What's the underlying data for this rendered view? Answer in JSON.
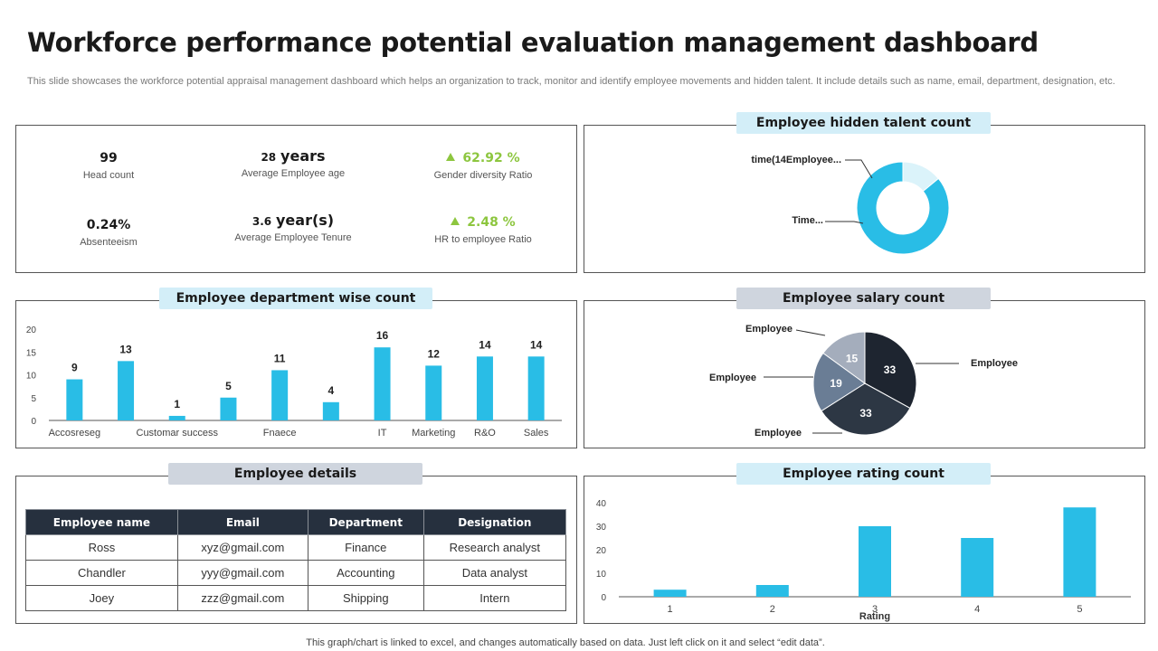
{
  "header": {
    "title": "Workforce performance potential evaluation management dashboard",
    "subtitle": "This slide showcases the workforce potential appraisal management dashboard which helps an organization to track, monitor and identify employee movements and hidden talent. It include details such as name, email, department, designation, etc."
  },
  "kpis": {
    "head_count": {
      "value": "99",
      "label": "Head count"
    },
    "avg_age": {
      "value": "28",
      "unit": "years",
      "label": "Average Employee age"
    },
    "gender_ratio": {
      "value": "62.92 %",
      "label": "Gender diversity Ratio"
    },
    "absenteeism": {
      "value": "0.24%",
      "label": "Absenteeism"
    },
    "avg_tenure": {
      "value": "3.6",
      "unit": "year(s)",
      "label": "Average Employee Tenure"
    },
    "hr_ratio": {
      "value": "2.48 %",
      "label": "HR to employee Ratio"
    }
  },
  "panels": {
    "hidden_talent": "Employee hidden talent count",
    "department": "Employee department wise count",
    "salary": "Employee salary count",
    "details": "Employee details",
    "rating": "Employee rating count"
  },
  "colors": {
    "accent": "#29bde6",
    "light_accent": "#dbf3fa",
    "green": "#8dc63f",
    "dark": "#26303e"
  },
  "table": {
    "headers": [
      "Employee name",
      "Email",
      "Department",
      "Designation"
    ],
    "rows": [
      [
        "Ross",
        "xyz@gmail.com",
        "Finance",
        "Research analyst"
      ],
      [
        "Chandler",
        "yyy@gmail.com",
        "Accounting",
        "Data analyst"
      ],
      [
        "Joey",
        "zzz@gmail.com",
        "Shipping",
        "Intern"
      ]
    ]
  },
  "footer": "This graph/chart is linked to excel, and changes automatically based on data. Just left click on it and select “edit data”.",
  "chart_data": [
    {
      "id": "hidden_talent",
      "type": "pie",
      "title": "Employee hidden talent count",
      "labels": [
        "time(14Employee...",
        "Time..."
      ],
      "values": [
        14,
        86
      ],
      "colors": [
        "#dbf3fa",
        "#29bde6"
      ]
    },
    {
      "id": "department",
      "type": "bar",
      "title": "Employee department wise count",
      "categories": [
        "Accosreseg",
        "",
        "Customar success",
        "",
        "Fnaece",
        "",
        "IT",
        "Marketing",
        "R&O",
        "Sales"
      ],
      "values": [
        9,
        13,
        1,
        5,
        11,
        4,
        16,
        12,
        14,
        14
      ],
      "ylim": [
        0,
        20
      ],
      "yticks": [
        0,
        5,
        10,
        15,
        20
      ]
    },
    {
      "id": "salary",
      "type": "pie",
      "title": "Employee salary count",
      "labels": [
        "Employee",
        "Employee",
        "Employee",
        "Employee"
      ],
      "values": [
        33,
        33,
        19,
        15
      ],
      "colors": [
        "#1e2530",
        "#2d3744",
        "#6a7d95",
        "#a4adbc"
      ]
    },
    {
      "id": "rating",
      "type": "bar",
      "title": "Employee rating count",
      "categories": [
        "1",
        "2",
        "3",
        "4",
        "5"
      ],
      "values": [
        3,
        5,
        30,
        25,
        38
      ],
      "xlabel": "Rating",
      "ylim": [
        0,
        40
      ],
      "yticks": [
        0,
        10,
        20,
        30,
        40
      ]
    }
  ]
}
